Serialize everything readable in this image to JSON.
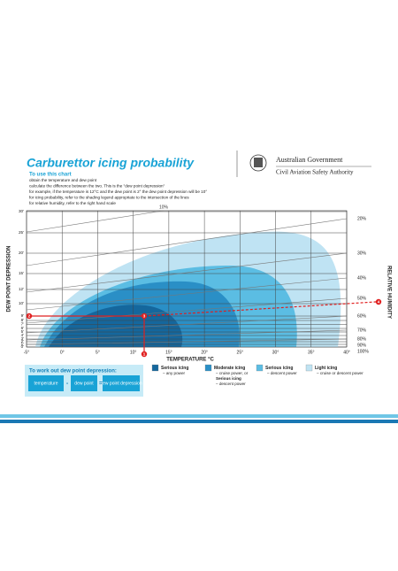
{
  "header": {
    "title": "Carburettor icing probability",
    "logo": [
      "Australian Government",
      "Civil Aviation Safety Authority"
    ]
  },
  "instructions": {
    "heading": "To use this chart",
    "items": [
      "obtain the temperature and dew point",
      "calculate the difference between the two. This is the \"dew point depression\"",
      "for example, if the temperature is 12°C and the dew point is 2° the dew point depression will be 10°",
      "for icing probability, refer to the shading legend appropriate to the intersection of the lines",
      "for relative humidity, refer to the right hand scale"
    ]
  },
  "chart": {
    "x_label": "TEMPERATURE °C",
    "y_label": "DEW POINT DEPRESSION",
    "rh_label": "RELATIVE HUMIDITY",
    "rh_line_label": "10%",
    "xticks": [
      "-5°",
      "0°",
      "5°",
      "10°",
      "15°",
      "20°",
      "25°",
      "30°",
      "35°",
      "40°"
    ],
    "yticks": [
      "30'",
      "25'",
      "20'",
      "15'",
      "12'",
      "10'",
      "9'",
      "8'",
      "7'",
      "6'",
      "5'",
      "4'",
      "3'",
      "2'",
      "1'",
      "0'"
    ],
    "rh_ticks": [
      "20%",
      "30%",
      "40%",
      "50%",
      "60%",
      "70%",
      "80%",
      "90%",
      "100%"
    ],
    "markers": [
      "1",
      "2",
      "3",
      "4"
    ]
  },
  "formula": {
    "heading": "To work out dew point depression:",
    "terms": [
      "temperature",
      "dew point",
      "dew point depression"
    ],
    "ops": [
      "-",
      "="
    ]
  },
  "legend": [
    {
      "title": "Serious icing",
      "desc": [
        "– any power"
      ]
    },
    {
      "title": "Moderate icing",
      "desc": [
        "– cruise power, or",
        "Serious icing",
        "– descent power"
      ]
    },
    {
      "title": "Serious icing",
      "desc": [
        "– descent power"
      ]
    },
    {
      "title": "Light icing",
      "desc": [
        "– cruise or descent power"
      ]
    }
  ]
}
